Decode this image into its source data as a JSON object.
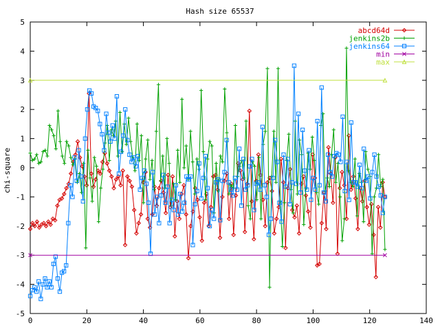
{
  "chart_data": {
    "type": "line",
    "title": "Hash size 65537",
    "xlabel": "",
    "ylabel": "chi-square",
    "xlim": [
      0,
      140
    ],
    "ylim": [
      -5,
      5
    ],
    "x_ticks": [
      "0",
      "20",
      "40",
      "60",
      "80",
      "100",
      "120",
      "140"
    ],
    "y_ticks": [
      "-5",
      "-4",
      "-3",
      "-2",
      "-1",
      "0",
      "1",
      "2",
      "3",
      "4",
      "5"
    ],
    "grid": false,
    "legend_position": "top-right",
    "series": [
      {
        "name": "abcd64d",
        "color": "#d40000",
        "marker": "diamond",
        "values": [
          -2.1,
          -1.9,
          -2.0,
          -1.85,
          -2.05,
          -1.95,
          -1.9,
          -2.0,
          -1.85,
          -1.95,
          -1.75,
          -1.8,
          -1.3,
          -1.1,
          -1.05,
          -0.9,
          -0.7,
          -0.55,
          -0.2,
          0.2,
          0.45,
          0.9,
          0.35,
          0.05,
          -0.3,
          -0.6,
          2.55,
          -0.2,
          -0.65,
          -0.4,
          -0.1,
          -0.2,
          0.2,
          0.5,
          0.15,
          -0.1,
          -0.3,
          -0.7,
          -0.4,
          -0.3,
          -0.6,
          -0.1,
          -2.65,
          -0.3,
          -0.45,
          -0.65,
          -1.45,
          -2.25,
          -1.9,
          -1.6,
          -0.5,
          -0.15,
          -1.75,
          -2.05,
          -1.6,
          -0.65,
          -1.3,
          -0.7,
          -0.45,
          -0.85,
          -1.55,
          -0.25,
          -1.35,
          -0.3,
          -2.35,
          -1.15,
          -1.75,
          -0.9,
          -0.6,
          -1.6,
          -3.1,
          -2.0,
          -1.5,
          -0.7,
          -1.1,
          -1.7,
          -2.5,
          -1.2,
          -0.9,
          -2.0,
          -1.35,
          -0.3,
          -0.25,
          -0.75,
          -2.4,
          -1.0,
          -0.45,
          -0.2,
          -1.75,
          -0.55,
          -2.3,
          -0.95,
          0.15,
          -0.1,
          -0.4,
          -2.2,
          -0.55,
          1.95,
          -1.15,
          -2.45,
          -0.45,
          0.45,
          -0.25,
          -1.1,
          -2.0,
          -0.5,
          -0.35,
          -0.8,
          -2.25,
          -1.75,
          -1.35,
          0.3,
          -0.5,
          -2.75,
          -0.7,
          -0.05,
          -1.45,
          -1.7,
          -1.3,
          -2.25,
          -0.55,
          -0.3,
          -0.95,
          -1.5,
          -2.05,
          0.45,
          -0.35,
          -3.35,
          -3.3,
          -1.9,
          -0.85,
          -2.1,
          0.7,
          -0.2,
          -1.2,
          0.35,
          -2.95,
          -0.7,
          -0.15,
          -0.6,
          -1.75,
          1.1,
          -0.75,
          -0.3,
          -1.05,
          -2.1,
          -0.7,
          -1.15,
          -0.45,
          -1.35,
          -1.95,
          -1.25,
          -2.3,
          -3.75,
          -1.35,
          -2.05,
          -0.5,
          -1.0
        ]
      },
      {
        "name": "jenkins2b",
        "color": "#00a000",
        "marker": "plus",
        "values": [
          0.5,
          0.25,
          0.3,
          0.45,
          0.15,
          0.2,
          0.55,
          0.6,
          0.4,
          1.45,
          1.3,
          1.1,
          0.65,
          1.95,
          0.9,
          0.4,
          0.15,
          0.9,
          0.75,
          0.35,
          0.1,
          0.3,
          -0.5,
          -0.2,
          -0.85,
          0.15,
          -2.75,
          0.6,
          -0.35,
          -1.15,
          0.35,
          0.05,
          -1.85,
          -0.7,
          -0.05,
          0.85,
          1.45,
          0.25,
          1.3,
          1.1,
          1.6,
          0.4,
          1.9,
          0.55,
          1.5,
          0.8,
          1.7,
          0.9,
          0.35,
          -0.1,
          1.5,
          0.25,
          1.1,
          -1.2,
          0.3,
          0.95,
          -0.4,
          0.25,
          -0.75,
          1.25,
          2.85,
          -0.45,
          0.4,
          -0.7,
          1.0,
          0.15,
          -1.3,
          -0.55,
          -1.1,
          0.6,
          -0.5,
          2.35,
          0.0,
          0.75,
          -0.4,
          1.25,
          0.2,
          -0.9,
          0.3,
          -0.05,
          2.65,
          0.55,
          -1.1,
          0.3,
          0.9,
          0.75,
          -1.55,
          0.15,
          -0.8,
          0.4,
          0.2,
          2.7,
          1.2,
          -0.9,
          -0.6,
          -0.7,
          1.45,
          -0.3,
          0.05,
          0.25,
          -0.35,
          1.6,
          -1.3,
          -1.75,
          0.2,
          0.05,
          -1.1,
          0.35,
          -1.75,
          0.8,
          1.25,
          3.4,
          -4.1,
          -0.3,
          1.25,
          -0.5,
          3.4,
          -1.15,
          -2.7,
          -1.2,
          0.25,
          1.15,
          -0.75,
          -1.55,
          1.6,
          -0.9,
          0.95,
          0.45,
          -1.95,
          -0.7,
          0.5,
          -0.05,
          1.05,
          0.25,
          -0.85,
          -1.25,
          1.45,
          1.85,
          -0.8,
          -0.35,
          -0.65,
          0.45,
          1.3,
          -0.5,
          0.15,
          -1.0,
          -2.5,
          -1.75,
          4.1,
          -0.1,
          -0.5,
          -0.65,
          0.3,
          -1.65,
          -0.2,
          -0.5,
          -1.85,
          0.55,
          -0.05,
          -0.3,
          -2.95,
          -1.0,
          -0.7,
          0.45,
          -0.65,
          -0.4,
          -2.8
        ]
      },
      {
        "name": "jenkins64",
        "color": "#0080ff",
        "marker": "square",
        "values": [
          -4.4,
          -4.2,
          -4.1,
          -4.25,
          -3.9,
          -4.5,
          -4.0,
          -3.8,
          -4.1,
          -3.9,
          -4.1,
          -3.3,
          -3.05,
          -3.8,
          -4.25,
          -3.6,
          -3.55,
          -3.35,
          -1.9,
          -0.6,
          -1.0,
          0.35,
          -0.45,
          0.6,
          -0.3,
          -1.15,
          1.0,
          2.0,
          2.65,
          2.55,
          2.1,
          2.05,
          1.95,
          1.5,
          1.15,
          0.6,
          1.85,
          1.2,
          0.9,
          1.45,
          1.0,
          2.45,
          -0.2,
          0.55,
          1.1,
          2.0,
          0.95,
          0.45,
          0.2,
          0.35,
          0.05,
          0.4,
          -0.75,
          -0.35,
          -0.1,
          -0.55,
          -1.2,
          -2.95,
          -0.15,
          -1.6,
          -1.0,
          -1.9,
          -0.95,
          -0.25,
          -1.2,
          -0.65,
          -1.9,
          -1.1,
          -1.45,
          -0.6,
          -1.6,
          -0.9,
          -1.5,
          -1.2,
          -0.3,
          -0.4,
          -0.3,
          -2.65,
          -1.25,
          -0.8,
          0.15,
          -1.05,
          -0.35,
          0.4,
          -0.7,
          -2.0,
          -1.45,
          -1.75,
          -0.5,
          -0.4,
          -1.8,
          -0.45,
          -0.15,
          0.95,
          -0.5,
          -0.75,
          -0.95,
          -0.35,
          -0.75,
          0.65,
          -1.3,
          0.3,
          -0.75,
          -0.6,
          0.05,
          0.3,
          -1.45,
          -0.55,
          -0.5,
          -0.75,
          1.4,
          -0.6,
          -1.0,
          -2.3,
          -1.75,
          -0.35,
          0.95,
          0.2,
          -1.2,
          -1.85,
          0.45,
          -0.65,
          0.3,
          -1.25,
          -0.5,
          3.5,
          -0.55,
          1.85,
          -0.85,
          1.3,
          -0.1,
          -0.75,
          0.6,
          -1.1,
          -0.35,
          -0.75,
          1.6,
          -0.6,
          2.75,
          -0.85,
          -1.15,
          0.45,
          -0.15,
          -0.3,
          0.4,
          0.5,
          0.45,
          0.2,
          1.75,
          -0.8,
          0.2,
          -1.1,
          1.55,
          -0.5,
          -0.5,
          -0.65,
          0.1,
          -0.7,
          0.65,
          -0.45,
          -0.3,
          -1.05,
          -0.15,
          0.45,
          -0.3,
          -0.65,
          -0.95,
          -1.55,
          -1.0
        ]
      },
      {
        "name": "min",
        "color": "#a000a0",
        "marker": "x",
        "points": [
          [
            0,
            -3
          ],
          [
            125.4,
            -3
          ]
        ]
      },
      {
        "name": "max",
        "color": "#c0e040",
        "marker": "triangle",
        "points": [
          [
            0,
            3
          ],
          [
            125.4,
            3
          ]
        ]
      }
    ]
  }
}
